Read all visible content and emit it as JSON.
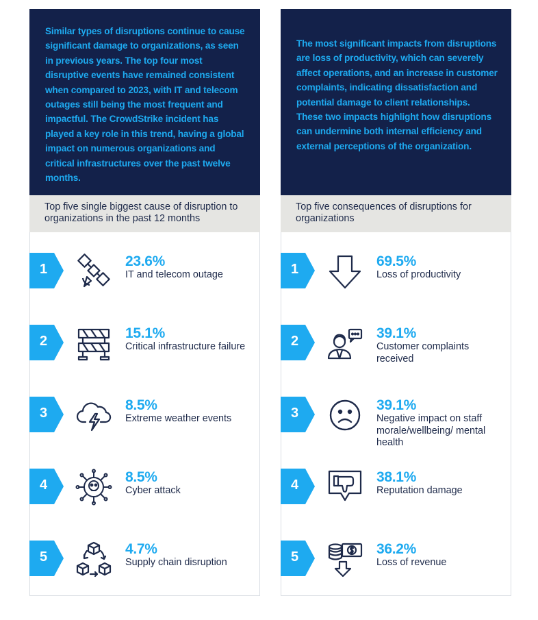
{
  "left": {
    "intro": "Similar types of disruptions continue to cause significant damage to organizations, as seen in previous years. The top four most disruptive events have remained consistent when compared to 2023, with IT and telecom outages still being the most frequent and impactful. The CrowdStrike incident has played a key role in this trend, having a global impact on numerous organizations and critical infrastructures over the past twelve months.",
    "subheading": "Top five single biggest cause of disruption to organizations in the past 12 months",
    "items": [
      {
        "rank": "1",
        "percent": "23.6%",
        "label": "IT and telecom outage",
        "icon": "satellite-icon"
      },
      {
        "rank": "2",
        "percent": "15.1%",
        "label": "Critical infrastructure failure",
        "icon": "barrier-icon"
      },
      {
        "rank": "3",
        "percent": "8.5%",
        "label": "Extreme weather events",
        "icon": "storm-cloud-icon"
      },
      {
        "rank": "4",
        "percent": "8.5%",
        "label": "Cyber attack",
        "icon": "skull-virus-icon"
      },
      {
        "rank": "5",
        "percent": "4.7%",
        "label": "Supply chain disruption",
        "icon": "supply-chain-cubes-icon"
      }
    ]
  },
  "right": {
    "intro": "The most significant impacts from disruptions are loss of productivity, which can severely affect operations, and an increase in customer complaints, indicating dissatisfaction and potential damage to client relationships. These two impacts highlight how disruptions can undermine both internal efficiency and external perceptions of the organization.",
    "subheading": "Top five consequences of disruptions for organizations",
    "items": [
      {
        "rank": "1",
        "percent": "69.5%",
        "label": "Loss of productivity",
        "icon": "down-arrow-icon"
      },
      {
        "rank": "2",
        "percent": "39.1%",
        "label": "Customer complaints received",
        "icon": "person-speech-icon"
      },
      {
        "rank": "3",
        "percent": "39.1%",
        "label": "Negative impact on staff morale/wellbeing/ mental health",
        "icon": "sad-face-icon"
      },
      {
        "rank": "4",
        "percent": "38.1%",
        "label": "Reputation damage",
        "icon": "thumbs-down-icon"
      },
      {
        "rank": "5",
        "percent": "36.2%",
        "label": "Loss of revenue",
        "icon": "money-down-icon"
      }
    ]
  },
  "colors": {
    "navy": "#13214a",
    "accent": "#1eaaf0",
    "subhead_bg": "#e5e5e2",
    "text": "#1e2a4a"
  }
}
